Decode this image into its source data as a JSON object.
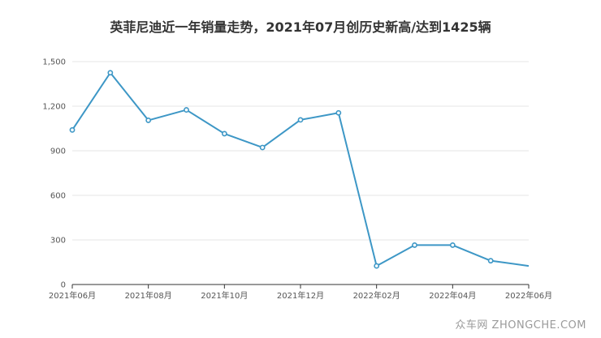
{
  "watermark": "众车网 ZHONGCHE.COM",
  "chart_data": {
    "type": "line",
    "title": "英菲尼迪近一年销量走势，2021年07月创历史新高/达到1425辆",
    "xlabel": "",
    "ylabel": "",
    "ylim": [
      0,
      1500
    ],
    "yticks": [
      0,
      300,
      600,
      900,
      1200,
      1500
    ],
    "ytick_labels": [
      "0",
      "300",
      "600",
      "900",
      "1,200",
      "1,500"
    ],
    "xtick_labels": [
      "2021年06月",
      "2021年08月",
      "2021年10月",
      "2021年12月",
      "2022年02月",
      "2022年04月",
      "2022年06月"
    ],
    "grid": true,
    "legend": "none",
    "line_color": "#3d97c6",
    "x": [
      "2021年06月",
      "2021年07月",
      "2021年08月",
      "2021年09月",
      "2021年10月",
      "2021年11月",
      "2021年12月",
      "2022年01月",
      "2022年02月",
      "2022年03月",
      "2022年04月",
      "2022年05月",
      "2022年06月"
    ],
    "series": [
      {
        "values": [
          1040,
          1425,
          1105,
          1175,
          1015,
          922,
          1108,
          1155,
          125,
          265,
          265,
          160,
          125
        ]
      }
    ]
  }
}
